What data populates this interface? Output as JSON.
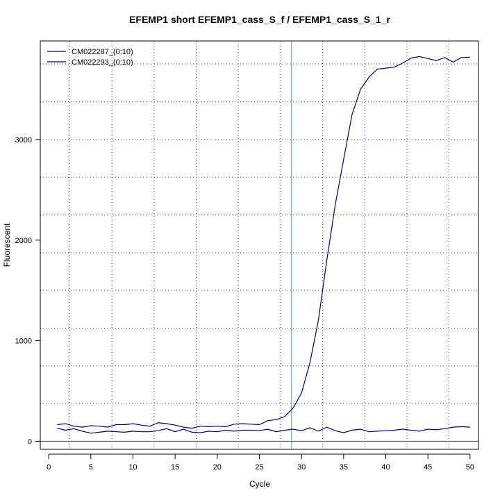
{
  "chart_data": {
    "type": "line",
    "title": "EFEMP1 short EFEMP1_cass_S_f / EFEMP1_cass_S_1_r",
    "xlabel": "Cycle",
    "ylabel": "Fluorescent",
    "xlim": [
      -1,
      51
    ],
    "ylim": [
      -80,
      3980
    ],
    "xticks": [
      0,
      5,
      10,
      15,
      20,
      25,
      30,
      35,
      40,
      45,
      50
    ],
    "yticks": [
      0,
      1000,
      2000,
      3000
    ],
    "grid": true,
    "legend_position": "top-left",
    "threshold_x": 28.8,
    "threshold_color": "#00e5e5",
    "baseline_y": 0,
    "baseline_color": "#b22222",
    "x": [
      1,
      2,
      3,
      4,
      5,
      6,
      7,
      8,
      9,
      10,
      11,
      12,
      13,
      14,
      15,
      16,
      17,
      18,
      19,
      20,
      21,
      22,
      23,
      24,
      25,
      26,
      27,
      28,
      29,
      30,
      31,
      32,
      33,
      34,
      35,
      36,
      37,
      38,
      39,
      40,
      41,
      42,
      43,
      44,
      45,
      46,
      47,
      48,
      49,
      50
    ],
    "series": [
      {
        "name": "CM022287_(0:10)",
        "color": "#000080",
        "values": [
          165,
          175,
          150,
          140,
          155,
          150,
          140,
          165,
          165,
          175,
          160,
          150,
          185,
          175,
          160,
          140,
          130,
          150,
          145,
          150,
          145,
          170,
          175,
          170,
          165,
          205,
          215,
          245,
          330,
          480,
          780,
          1200,
          1800,
          2350,
          2800,
          3250,
          3500,
          3620,
          3700,
          3710,
          3720,
          3760,
          3810,
          3825,
          3805,
          3785,
          3815,
          3770,
          3815,
          3820
        ]
      },
      {
        "name": "CM022293_(0:10)",
        "color": "#000080",
        "values": [
          130,
          110,
          125,
          100,
          80,
          90,
          100,
          95,
          90,
          100,
          95,
          95,
          105,
          125,
          95,
          120,
          90,
          85,
          100,
          95,
          110,
          100,
          110,
          110,
          105,
          120,
          95,
          110,
          120,
          105,
          135,
          100,
          140,
          105,
          85,
          110,
          120,
          95,
          100,
          105,
          110,
          120,
          110,
          100,
          120,
          115,
          125,
          140,
          145,
          140
        ]
      }
    ]
  }
}
